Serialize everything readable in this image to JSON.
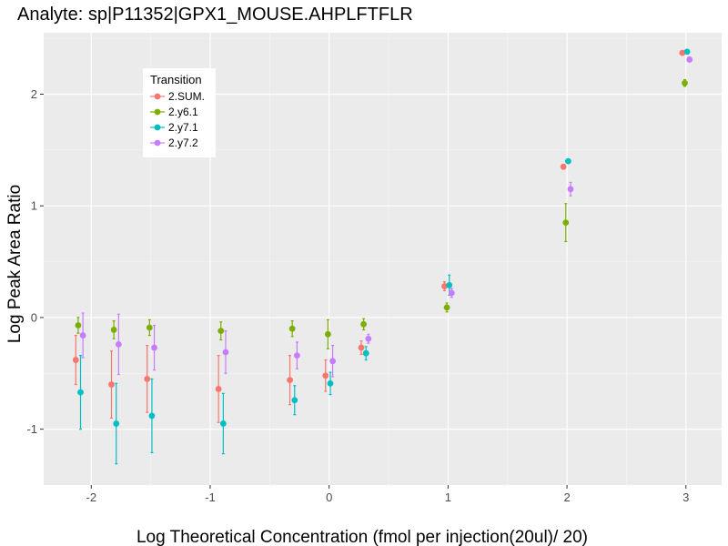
{
  "chart_data": {
    "type": "scatter",
    "title": "Analyte: sp|P11352|GPX1_MOUSE.AHPLFTFLR",
    "xlabel": "Log Theoretical Concentration (fmol per injection(20ul)/ 20)",
    "ylabel": "Log Peak Area Ratio",
    "xlim": [
      -2.4,
      3.3
    ],
    "ylim": [
      -1.5,
      2.55
    ],
    "x_ticks": [
      -2,
      -1,
      0,
      1,
      2,
      3
    ],
    "x_tick_labels": [
      "-2",
      "-1",
      "0",
      "1",
      "2",
      "3"
    ],
    "y_ticks": [
      -1,
      0,
      1,
      2
    ],
    "y_tick_labels": [
      "-1",
      "0",
      "1",
      "2"
    ],
    "grid": true,
    "legend": {
      "title": "Transition",
      "position": "top-left (inside plot)"
    },
    "x_positions": [
      -2.1,
      -1.8,
      -1.5,
      -0.9,
      -0.3,
      0,
      0.3,
      1,
      2,
      3
    ],
    "series": [
      {
        "name": "2.SUM.",
        "color": "#F8766D",
        "x_offset": -0.03,
        "y": [
          -0.38,
          -0.6,
          -0.55,
          -0.64,
          -0.56,
          -0.52,
          -0.27,
          0.28,
          1.35,
          2.37
        ],
        "err": [
          0.22,
          0.3,
          0.3,
          0.3,
          0.22,
          0.14,
          0.06,
          0.04,
          0.02,
          0.02
        ]
      },
      {
        "name": "2.y6.1",
        "color": "#7CAE00",
        "x_offset": -0.01,
        "y": [
          -0.07,
          -0.11,
          -0.09,
          -0.12,
          -0.1,
          -0.15,
          -0.06,
          0.09,
          0.85,
          2.1
        ],
        "err": [
          0.07,
          0.08,
          0.07,
          0.08,
          0.07,
          0.13,
          0.05,
          0.04,
          0.17,
          0.03
        ]
      },
      {
        "name": "2.y7.1",
        "color": "#00BFC4",
        "x_offset": 0.01,
        "y": [
          -0.67,
          -0.95,
          -0.88,
          -0.95,
          -0.74,
          -0.59,
          -0.32,
          0.29,
          1.4,
          2.38
        ],
        "err": [
          0.33,
          0.36,
          0.33,
          0.27,
          0.13,
          0.1,
          0.06,
          0.09,
          0.02,
          0.02
        ]
      },
      {
        "name": "2.y7.2",
        "color": "#C77CFF",
        "x_offset": 0.03,
        "y": [
          -0.16,
          -0.24,
          -0.27,
          -0.31,
          -0.34,
          -0.39,
          -0.19,
          0.22,
          1.15,
          2.31
        ],
        "err": [
          0.2,
          0.27,
          0.2,
          0.19,
          0.12,
          0.14,
          0.04,
          0.04,
          0.06,
          0.02
        ]
      }
    ]
  }
}
